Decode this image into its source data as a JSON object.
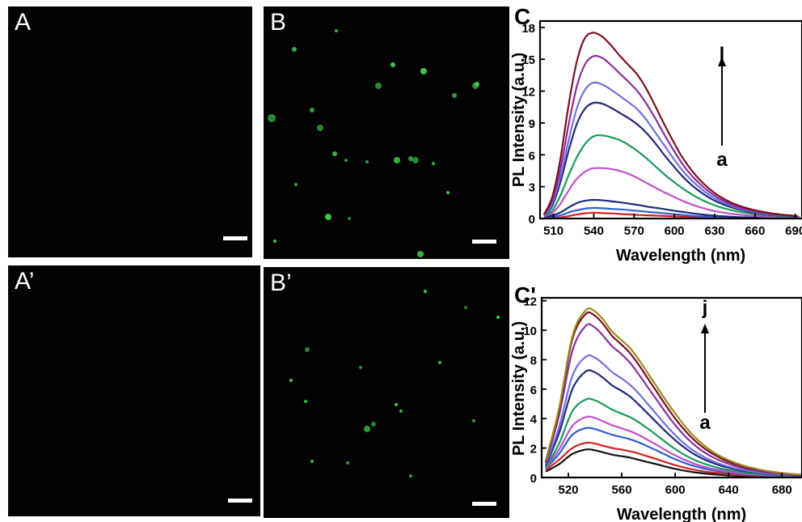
{
  "panels": [
    {
      "label": "A",
      "spots": 0,
      "scale_bar": true
    },
    {
      "label": "B",
      "spots": 1,
      "scale_bar": true
    },
    {
      "label": "A’",
      "spots": 0,
      "scale_bar": true
    },
    {
      "label": "B’",
      "spots": 1,
      "scale_bar": true
    }
  ],
  "colors": {
    "fluorescence": "#3fd24a",
    "background": "#020202",
    "series": [
      "#111111",
      "#d62020",
      "#2f5fd0",
      "#c050c8",
      "#1a9a5a",
      "#1e2a78",
      "#7070e0",
      "#8a2e9a",
      "#7a1020",
      "#9a8a20"
    ]
  },
  "chart_data": [
    {
      "type": "line",
      "panel_label": "C",
      "xlabel": "Wavelength (nm)",
      "ylabel": "PL Intensity (a.u.)",
      "xlim": [
        500,
        695
      ],
      "ylim": [
        0,
        18.6
      ],
      "xticks": [
        510,
        540,
        570,
        600,
        630,
        660,
        690
      ],
      "yticks": [
        0,
        3,
        6,
        9,
        12,
        15,
        18
      ],
      "arrow_top_label": "l",
      "arrow_bottom_label": "a",
      "series": [
        {
          "peak_x": 541,
          "values": [
            0.08,
            0.03,
            0.1,
            0.25,
            0.4,
            0.5,
            0.55,
            0.5,
            0.48,
            0.42,
            0.38,
            0.33,
            0.3,
            0.27,
            0.24,
            0.2,
            0.16,
            0.12,
            0.09,
            0.07,
            0.05,
            0.04,
            0.03,
            0.02,
            0.02,
            0.01,
            0.01,
            0.01,
            0.01,
            0.0
          ]
        },
        {
          "peak_x": 541,
          "values": [
            0.1,
            0.15,
            0.3,
            0.6,
            0.8,
            0.95,
            1.0,
            0.95,
            0.9,
            0.85,
            0.78,
            0.7,
            0.62,
            0.55,
            0.48,
            0.4,
            0.32,
            0.25,
            0.2,
            0.15,
            0.11,
            0.08,
            0.06,
            0.05,
            0.04,
            0.03,
            0.02,
            0.02,
            0.01,
            0.01
          ]
        },
        {
          "peak_x": 541,
          "values": [
            0.15,
            0.3,
            0.6,
            1.1,
            1.5,
            1.7,
            1.75,
            1.7,
            1.6,
            1.5,
            1.38,
            1.25,
            1.1,
            0.98,
            0.85,
            0.72,
            0.6,
            0.48,
            0.38,
            0.3,
            0.23,
            0.18,
            0.14,
            0.11,
            0.09,
            0.07,
            0.05,
            0.04,
            0.03,
            0.02
          ]
        },
        {
          "peak_x": 544,
          "values": [
            0.2,
            0.5,
            1.3,
            2.5,
            3.6,
            4.3,
            4.7,
            4.75,
            4.7,
            4.55,
            4.3,
            3.95,
            3.5,
            3.05,
            2.6,
            2.2,
            1.8,
            1.45,
            1.15,
            0.9,
            0.7,
            0.55,
            0.43,
            0.34,
            0.27,
            0.21,
            0.17,
            0.13,
            0.1,
            0.08
          ]
        },
        {
          "peak_x": 541,
          "values": [
            0.25,
            0.8,
            2.3,
            4.3,
            6.0,
            7.2,
            7.8,
            7.8,
            7.6,
            7.3,
            6.8,
            6.2,
            5.5,
            4.75,
            4.0,
            3.35,
            2.75,
            2.2,
            1.75,
            1.38,
            1.08,
            0.85,
            0.66,
            0.52,
            0.41,
            0.32,
            0.26,
            0.2,
            0.16,
            0.12
          ]
        },
        {
          "peak_x": 540,
          "values": [
            0.3,
            1.2,
            3.5,
            6.5,
            9.0,
            10.4,
            10.9,
            10.8,
            10.4,
            9.9,
            9.4,
            8.8,
            8.0,
            7.0,
            5.9,
            4.9,
            3.95,
            3.15,
            2.5,
            1.95,
            1.52,
            1.18,
            0.92,
            0.72,
            0.56,
            0.44,
            0.35,
            0.27,
            0.21,
            0.16
          ]
        },
        {
          "peak_x": 540,
          "values": [
            0.3,
            1.4,
            4.0,
            7.5,
            10.5,
            12.2,
            12.8,
            12.6,
            12.1,
            11.5,
            10.9,
            10.2,
            9.2,
            8.0,
            6.8,
            5.6,
            4.5,
            3.6,
            2.85,
            2.22,
            1.72,
            1.34,
            1.04,
            0.81,
            0.63,
            0.49,
            0.39,
            0.3,
            0.23,
            0.18
          ]
        },
        {
          "peak_x": 540,
          "values": [
            0.35,
            1.7,
            4.8,
            9.0,
            12.6,
            14.6,
            15.3,
            15.1,
            14.4,
            13.6,
            12.8,
            11.9,
            10.7,
            9.3,
            7.8,
            6.4,
            5.1,
            4.05,
            3.2,
            2.5,
            1.94,
            1.5,
            1.17,
            0.91,
            0.71,
            0.55,
            0.43,
            0.34,
            0.26,
            0.2
          ]
        },
        {
          "peak_x": 539,
          "values": [
            0.4,
            2.0,
            5.5,
            10.5,
            14.6,
            16.9,
            17.5,
            17.2,
            16.4,
            15.4,
            14.5,
            13.6,
            12.3,
            10.7,
            9.0,
            7.4,
            5.9,
            4.7,
            3.7,
            2.9,
            2.25,
            1.75,
            1.36,
            1.06,
            0.83,
            0.65,
            0.51,
            0.4,
            0.31,
            0.24
          ]
        }
      ]
    },
    {
      "type": "line",
      "panel_label": "C'",
      "xlabel": "Wavelength (nm)",
      "ylabel": "PL Intensity (a.u.)",
      "xlim": [
        500,
        695
      ],
      "ylim": [
        0,
        12.2
      ],
      "xticks": [
        520,
        560,
        600,
        640,
        680
      ],
      "yticks": [
        0,
        2,
        4,
        6,
        8,
        10,
        12
      ],
      "arrow_top_label": "j",
      "arrow_bottom_label": "a",
      "series": [
        {
          "peak_x": 533,
          "values": [
            0.4,
            0.9,
            1.6,
            1.9,
            1.85,
            1.7,
            1.55,
            1.45,
            1.35,
            1.2,
            1.05,
            0.9,
            0.75,
            0.6,
            0.48,
            0.38,
            0.3,
            0.24,
            0.19,
            0.15,
            0.12,
            0.1,
            0.08,
            0.06,
            0.05,
            0.04,
            0.03,
            0.03,
            0.02,
            0.02
          ]
        },
        {
          "peak_x": 533,
          "values": [
            0.5,
            1.2,
            2.0,
            2.35,
            2.3,
            2.15,
            2.0,
            1.9,
            1.78,
            1.62,
            1.44,
            1.25,
            1.05,
            0.86,
            0.7,
            0.56,
            0.45,
            0.36,
            0.29,
            0.23,
            0.18,
            0.15,
            0.12,
            0.1,
            0.08,
            0.06,
            0.05,
            0.04,
            0.03,
            0.03
          ]
        },
        {
          "peak_x": 533,
          "values": [
            0.6,
            1.6,
            2.9,
            3.35,
            3.3,
            3.1,
            2.9,
            2.75,
            2.6,
            2.38,
            2.12,
            1.84,
            1.55,
            1.27,
            1.03,
            0.82,
            0.66,
            0.53,
            0.42,
            0.34,
            0.27,
            0.22,
            0.18,
            0.14,
            0.11,
            0.09,
            0.07,
            0.06,
            0.05,
            0.04
          ]
        },
        {
          "peak_x": 533,
          "values": [
            0.65,
            1.9,
            3.5,
            4.1,
            4.05,
            3.8,
            3.55,
            3.35,
            3.15,
            2.88,
            2.56,
            2.22,
            1.87,
            1.54,
            1.25,
            1.0,
            0.8,
            0.64,
            0.51,
            0.41,
            0.33,
            0.27,
            0.22,
            0.17,
            0.14,
            0.11,
            0.09,
            0.07,
            0.06,
            0.05
          ]
        },
        {
          "peak_x": 533,
          "values": [
            0.7,
            2.3,
            4.5,
            5.3,
            5.25,
            4.95,
            4.6,
            4.35,
            4.1,
            3.75,
            3.33,
            2.88,
            2.42,
            1.98,
            1.6,
            1.28,
            1.02,
            0.82,
            0.65,
            0.52,
            0.42,
            0.34,
            0.27,
            0.22,
            0.18,
            0.14,
            0.11,
            0.09,
            0.07,
            0.06
          ]
        },
        {
          "peak_x": 533,
          "values": [
            0.8,
            3.0,
            6.0,
            7.2,
            7.15,
            6.75,
            6.25,
            5.9,
            5.5,
            4.95,
            4.35,
            3.75,
            3.15,
            2.6,
            2.1,
            1.68,
            1.34,
            1.07,
            0.85,
            0.68,
            0.54,
            0.43,
            0.35,
            0.28,
            0.22,
            0.18,
            0.14,
            0.11,
            0.09,
            0.07
          ]
        },
        {
          "peak_x": 533,
          "values": [
            0.9,
            3.4,
            6.9,
            8.2,
            8.15,
            7.7,
            7.15,
            6.75,
            6.3,
            5.7,
            5.0,
            4.3,
            3.6,
            2.95,
            2.38,
            1.9,
            1.52,
            1.21,
            0.96,
            0.77,
            0.61,
            0.49,
            0.39,
            0.31,
            0.25,
            0.2,
            0.16,
            0.13,
            0.1,
            0.08
          ]
        },
        {
          "peak_x": 533,
          "values": [
            1.0,
            4.2,
            8.6,
            10.3,
            10.2,
            9.6,
            8.9,
            8.4,
            7.8,
            7.0,
            6.15,
            5.3,
            4.45,
            3.65,
            2.95,
            2.36,
            1.88,
            1.5,
            1.2,
            0.96,
            0.76,
            0.61,
            0.49,
            0.39,
            0.31,
            0.25,
            0.2,
            0.16,
            0.13,
            0.1
          ]
        },
        {
          "peak_x": 533,
          "values": [
            1.1,
            4.6,
            9.4,
            11.1,
            11.0,
            10.4,
            9.6,
            9.05,
            8.45,
            7.65,
            6.75,
            5.85,
            4.95,
            4.1,
            3.35,
            2.7,
            2.17,
            1.74,
            1.39,
            1.11,
            0.89,
            0.71,
            0.57,
            0.46,
            0.37,
            0.3,
            0.24,
            0.19,
            0.15,
            0.12
          ]
        },
        {
          "peak_x": 533,
          "values": [
            1.15,
            4.7,
            9.6,
            11.35,
            11.3,
            10.7,
            9.9,
            9.35,
            8.8,
            8.0,
            7.1,
            6.2,
            5.3,
            4.45,
            3.65,
            2.95,
            2.38,
            1.9,
            1.52,
            1.22,
            0.98,
            0.78,
            0.63,
            0.5,
            0.4,
            0.32,
            0.26,
            0.21,
            0.17,
            0.13
          ]
        }
      ]
    }
  ]
}
